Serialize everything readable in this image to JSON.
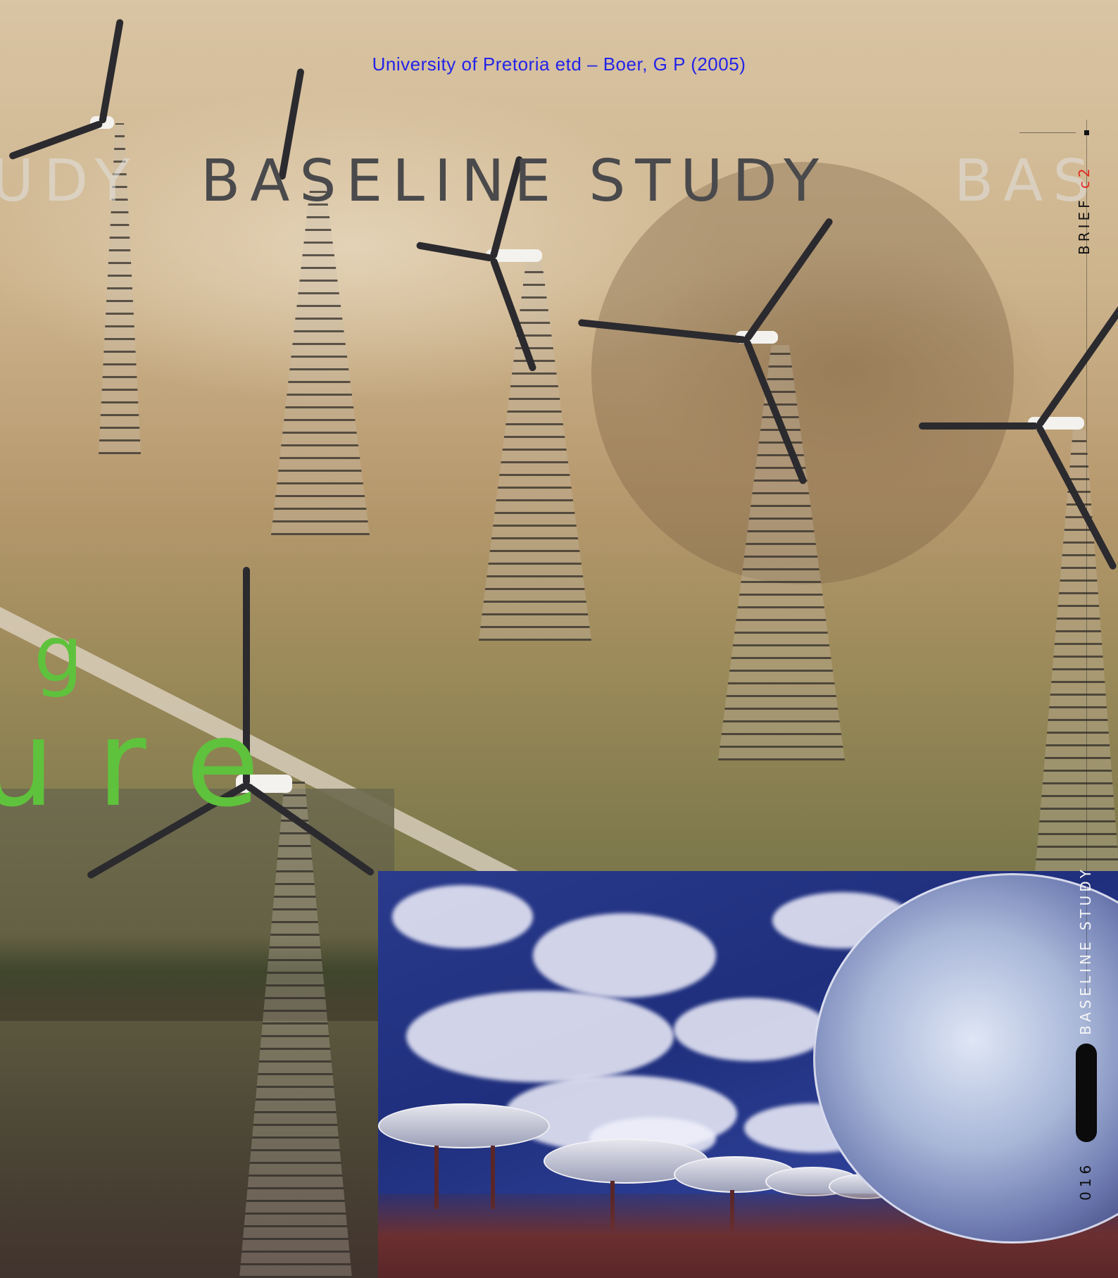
{
  "citation": "University of Pretoria etd – Boer, G P  (2005)",
  "headline": {
    "left_fragment": "UDY",
    "main": "BASELINE STUDY",
    "right_fragment": "BAS"
  },
  "background_text": {
    "g": "g",
    "ure": "ure"
  },
  "side_tab": {
    "brief_label": "BRIEF",
    "chapter": "c2",
    "section_label": "BASELINE STUDY",
    "page_number": "016"
  },
  "colors": {
    "citation": "#2323e8",
    "headline": "#4a4a4c",
    "accent_green": "#5fc23c",
    "accent_red": "#e3261e"
  }
}
